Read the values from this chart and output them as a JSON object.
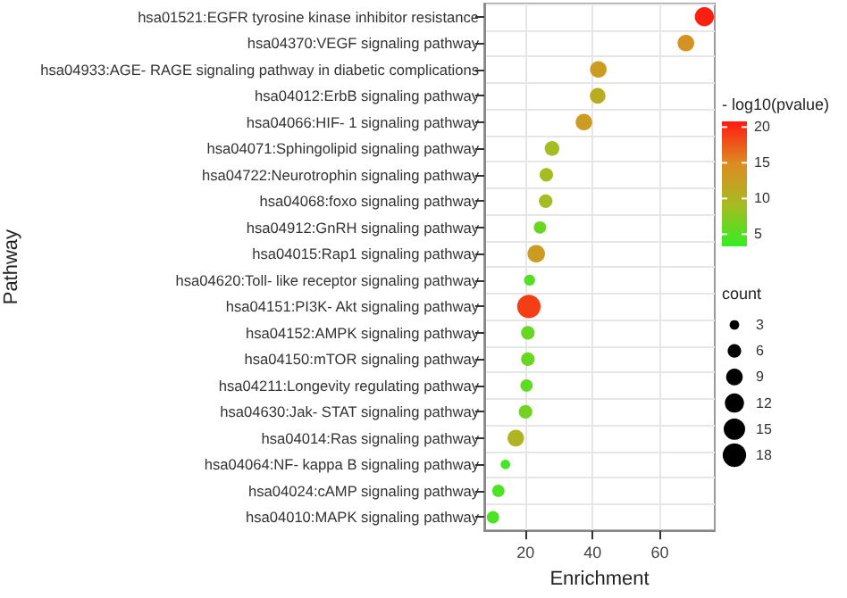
{
  "chart_data": {
    "type": "bubble",
    "orientation": "horizontal",
    "xlabel": "Enrichment",
    "ylabel": "Pathway",
    "clabel": "- log10(pvalue)",
    "legend_title": "count",
    "grid": true,
    "categories": [
      "hsa01521:EGFR tyrosine kinase inhibitor resistance",
      "hsa04370:VEGF signaling pathway",
      "hsa04933:AGE- RAGE signaling pathway in diabetic complications",
      "hsa04012:ErbB signaling pathway",
      "hsa04066:HIF- 1 signaling pathway",
      "hsa04071:Sphingolipid signaling pathway",
      "hsa04722:Neurotrophin signaling pathway",
      "hsa04068:foxo signaling pathway",
      "hsa04912:GnRH signaling pathway",
      "hsa04015:Rap1 signaling pathway",
      "hsa04620:Toll- like receptor signaling pathway",
      "hsa04151:PI3K- Akt signaling pathway",
      "hsa04152:AMPK signaling pathway",
      "hsa04150:mTOR signaling pathway",
      "hsa04211:Longevity regulating pathway",
      "hsa04630:Jak- STAT signaling pathway",
      "hsa04014:Ras signaling pathway",
      "hsa04064:NF- kappa B signaling pathway",
      "hsa04024:cAMP signaling pathway",
      "hsa04010:MAPK signaling pathway"
    ],
    "values": [
      73.3,
      67.8,
      41.7,
      41.5,
      37.4,
      27.9,
      26.2,
      26,
      24.3,
      23.2,
      21.2,
      21,
      20.7,
      20.7,
      20.3,
      20,
      17.1,
      14,
      11.9,
      10.3
    ],
    "sizes": [
      12,
      9,
      9,
      8,
      9,
      7,
      6,
      6,
      5,
      10,
      4,
      18,
      6,
      6,
      5,
      6,
      9,
      3,
      5,
      5
    ],
    "cvalues": [
      20.5,
      14,
      13,
      11,
      13,
      9,
      9,
      9,
      6,
      13,
      5,
      19,
      6,
      6,
      5.5,
      6.5,
      10,
      4,
      4.5,
      4.5
    ],
    "size_legend": [
      3,
      6,
      9,
      12,
      15,
      18
    ],
    "clim": [
      3.3,
      20.8
    ],
    "cticks": [
      5,
      10,
      15,
      20
    ],
    "xlim": [
      7.7,
      76.4
    ],
    "xticks": [
      20,
      40,
      60
    ]
  }
}
